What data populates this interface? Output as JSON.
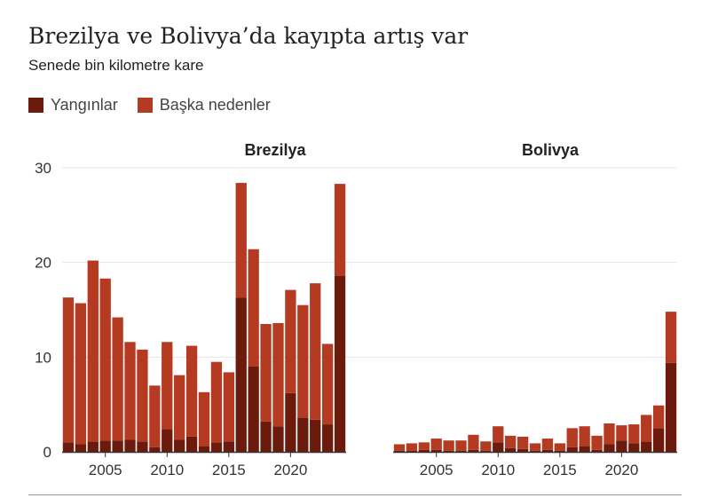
{
  "title": "Brezilya ve Bolivya’da kayıpta artış var",
  "subtitle": "Senede bin kilometre kare",
  "legend": [
    {
      "label": "Yangınlar",
      "color": "#6b1a0c"
    },
    {
      "label": "Başka nedenler",
      "color": "#b53a22"
    }
  ],
  "chart_data": [
    {
      "type": "bar",
      "stacked": true,
      "title": "Brezilya",
      "xlabel": "",
      "ylabel": "",
      "ylim": [
        0,
        30
      ],
      "y_ticks": [
        0,
        10,
        20,
        30
      ],
      "x_ticks": [
        2005,
        2010,
        2015,
        2020
      ],
      "categories": [
        2002,
        2003,
        2004,
        2005,
        2006,
        2007,
        2008,
        2009,
        2010,
        2011,
        2012,
        2013,
        2014,
        2015,
        2016,
        2017,
        2018,
        2019,
        2020,
        2021,
        2022,
        2023,
        2024
      ],
      "series": [
        {
          "name": "Yangınlar",
          "values": [
            1.0,
            0.8,
            1.1,
            1.2,
            1.2,
            1.3,
            1.1,
            0.5,
            2.4,
            1.3,
            1.6,
            0.6,
            1.0,
            1.1,
            16.3,
            9.0,
            3.2,
            2.7,
            6.2,
            3.6,
            3.4,
            2.9,
            18.6
          ]
        },
        {
          "name": "Başka nedenler",
          "values": [
            15.3,
            14.9,
            19.1,
            17.1,
            13.0,
            10.3,
            9.7,
            6.5,
            9.2,
            6.8,
            9.6,
            5.7,
            8.5,
            7.3,
            12.1,
            12.4,
            10.3,
            10.9,
            10.9,
            11.9,
            14.4,
            8.5,
            9.7
          ]
        }
      ]
    },
    {
      "type": "bar",
      "stacked": true,
      "title": "Bolivya",
      "xlabel": "",
      "ylabel": "",
      "ylim": [
        0,
        30
      ],
      "x_ticks": [
        2005,
        2010,
        2015,
        2020
      ],
      "categories": [
        2002,
        2003,
        2004,
        2005,
        2006,
        2007,
        2008,
        2009,
        2010,
        2011,
        2012,
        2013,
        2014,
        2015,
        2016,
        2017,
        2018,
        2019,
        2020,
        2021,
        2022,
        2023,
        2024
      ],
      "series": [
        {
          "name": "Yangınlar",
          "values": [
            0.1,
            0.1,
            0.2,
            0.2,
            0.1,
            0.1,
            0.2,
            0.1,
            1.0,
            0.4,
            0.3,
            0.1,
            0.2,
            0.1,
            0.5,
            0.6,
            0.2,
            0.8,
            1.2,
            0.9,
            1.1,
            2.5,
            9.4
          ]
        },
        {
          "name": "Başka nedenler",
          "values": [
            0.7,
            0.8,
            0.8,
            1.2,
            1.1,
            1.1,
            1.6,
            1.0,
            1.7,
            1.3,
            1.3,
            0.8,
            1.2,
            0.8,
            2.0,
            2.1,
            1.5,
            2.2,
            1.6,
            2.0,
            2.8,
            2.4,
            5.4
          ]
        }
      ]
    }
  ]
}
